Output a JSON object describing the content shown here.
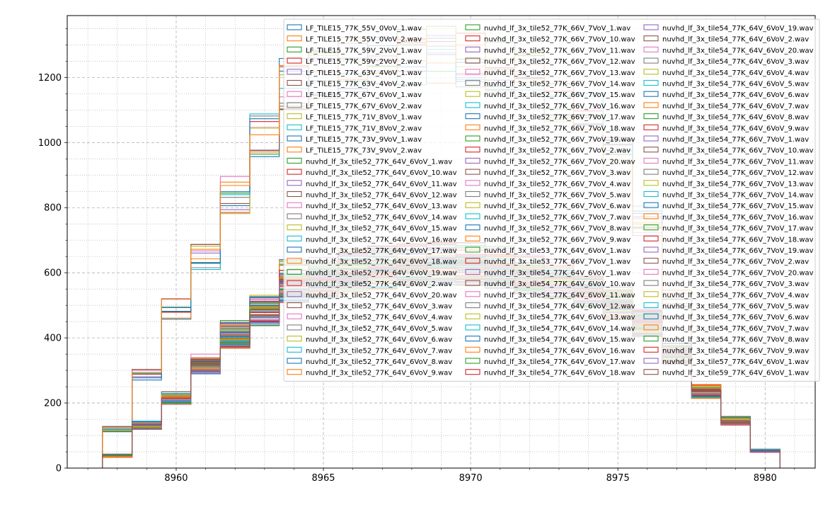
{
  "chart_data": {
    "type": "histogram-step",
    "title": "",
    "xlabel": "",
    "ylabel": "",
    "xlim": [
      8956.3,
      8981.7
    ],
    "ylim": [
      0,
      1390
    ],
    "xticks": [
      8960,
      8965,
      8970,
      8975,
      8980
    ],
    "yticks": [
      0,
      200,
      400,
      600,
      800,
      1000,
      1200
    ],
    "grid": {
      "major": "dashed",
      "minor": "dotted"
    },
    "legend_placement": "top-right",
    "legend_columns": 3,
    "bin_edges": [
      8957.5,
      8958.5,
      8959.5,
      8960.5,
      8961.5,
      8962.5,
      8963.5,
      8964.5,
      8965.5,
      8966.5,
      8967.5,
      8968.5,
      8969.5,
      8970.5,
      8971.5,
      8972.5,
      8973.5,
      8974.5,
      8975.5,
      8976.5,
      8977.5,
      8978.5,
      8979.5,
      8980.5
    ],
    "group_profiles": {
      "LF_TILE15": [
        120,
        290,
        490,
        650,
        840,
        1020,
        1180,
        1210,
        1240,
        1250,
        1260,
        1270,
        1250,
        1230,
        1200,
        1140,
        1080,
        950,
        760,
        520,
        230,
        140,
        55
      ],
      "tile52_64V": [
        40,
        130,
        215,
        315,
        400,
        480,
        560,
        580,
        600,
        610,
        615,
        620,
        620,
        615,
        600,
        580,
        555,
        510,
        450,
        350,
        240,
        150,
        55
      ],
      "tile52_66V": [
        35,
        135,
        220,
        330,
        425,
        500,
        600,
        610,
        630,
        640,
        645,
        650,
        650,
        640,
        620,
        600,
        570,
        520,
        460,
        360,
        240,
        150,
        55
      ],
      "tile54": [
        38,
        128,
        210,
        310,
        395,
        470,
        545,
        560,
        580,
        590,
        600,
        605,
        600,
        590,
        575,
        555,
        530,
        490,
        430,
        340,
        230,
        145,
        52
      ]
    },
    "legend_entries": [
      "LF_TILE15_77K_55V_0VoV_1.wav",
      "LF_TILE15_77K_55V_0VoV_2.wav",
      "LF_TILE15_77K_59V_2VoV_1.wav",
      "LF_TILE15_77K_59V_2VoV_2.wav",
      "LF_TILE15_77K_63V_4VoV_1.wav",
      "LF_TILE15_77K_63V_4VoV_2.wav",
      "LF_TILE15_77K_67V_6VoV_1.wav",
      "LF_TILE15_77K_67V_6VoV_2.wav",
      "LF_TILE15_77K_71V_8VoV_1.wav",
      "LF_TILE15_77K_71V_8VoV_2.wav",
      "LF_TILE15_77K_73V_9VoV_1.wav",
      "LF_TILE15_77K_73V_9VoV_2.wav",
      "nuvhd_lf_3x_tile52_77K_64V_6VoV_1.wav",
      "nuvhd_lf_3x_tile52_77K_64V_6VoV_10.wav",
      "nuvhd_lf_3x_tile52_77K_64V_6VoV_11.wav",
      "nuvhd_lf_3x_tile52_77K_64V_6VoV_12.wav",
      "nuvhd_lf_3x_tile52_77K_64V_6VoV_13.wav",
      "nuvhd_lf_3x_tile52_77K_64V_6VoV_14.wav",
      "nuvhd_lf_3x_tile52_77K_64V_6VoV_15.wav",
      "nuvhd_lf_3x_tile52_77K_64V_6VoV_16.wav",
      "nuvhd_lf_3x_tile52_77K_64V_6VoV_17.wav",
      "nuvhd_lf_3x_tile52_77K_64V_6VoV_18.wav",
      "nuvhd_lf_3x_tile52_77K_64V_6VoV_19.wav",
      "nuvhd_lf_3x_tile52_77K_64V_6VoV_2.wav",
      "nuvhd_lf_3x_tile52_77K_64V_6VoV_20.wav",
      "nuvhd_lf_3x_tile52_77K_64V_6VoV_3.wav",
      "nuvhd_lf_3x_tile52_77K_64V_6VoV_4.wav",
      "nuvhd_lf_3x_tile52_77K_64V_6VoV_5.wav",
      "nuvhd_lf_3x_tile52_77K_64V_6VoV_6.wav",
      "nuvhd_lf_3x_tile52_77K_64V_6VoV_7.wav",
      "nuvhd_lf_3x_tile52_77K_64V_6VoV_8.wav",
      "nuvhd_lf_3x_tile52_77K_64V_6VoV_9.wav",
      "nuvhd_lf_3x_tile52_77K_66V_7VoV_1.wav",
      "nuvhd_lf_3x_tile52_77K_66V_7VoV_10.wav",
      "nuvhd_lf_3x_tile52_77K_66V_7VoV_11.wav",
      "nuvhd_lf_3x_tile52_77K_66V_7VoV_12.wav",
      "nuvhd_lf_3x_tile52_77K_66V_7VoV_13.wav",
      "nuvhd_lf_3x_tile52_77K_66V_7VoV_14.wav",
      "nuvhd_lf_3x_tile52_77K_66V_7VoV_15.wav",
      "nuvhd_lf_3x_tile52_77K_66V_7VoV_16.wav",
      "nuvhd_lf_3x_tile52_77K_66V_7VoV_17.wav",
      "nuvhd_lf_3x_tile52_77K_66V_7VoV_18.wav",
      "nuvhd_lf_3x_tile52_77K_66V_7VoV_19.wav",
      "nuvhd_lf_3x_tile52_77K_66V_7VoV_2.wav",
      "nuvhd_lf_3x_tile52_77K_66V_7VoV_20.wav",
      "nuvhd_lf_3x_tile52_77K_66V_7VoV_3.wav",
      "nuvhd_lf_3x_tile52_77K_66V_7VoV_4.wav",
      "nuvhd_lf_3x_tile52_77K_66V_7VoV_5.wav",
      "nuvhd_lf_3x_tile52_77K_66V_7VoV_6.wav",
      "nuvhd_lf_3x_tile52_77K_66V_7VoV_7.wav",
      "nuvhd_lf_3x_tile52_77K_66V_7VoV_8.wav",
      "nuvhd_lf_3x_tile52_77K_66V_7VoV_9.wav",
      "nuvhd_lf_3x_tile53_77K_64V_6VoV_1.wav",
      "nuvhd_lf_3x_tile53_77K_66V_7VoV_1.wav",
      "nuvhd_lf_3x_tile54_77K_64V_6VoV_1.wav",
      "nuvhd_lf_3x_tile54_77K_64V_6VoV_10.wav",
      "nuvhd_lf_3x_tile54_77K_64V_6VoV_11.wav",
      "nuvhd_lf_3x_tile54_77K_64V_6VoV_12.wav",
      "nuvhd_lf_3x_tile54_77K_64V_6VoV_13.wav",
      "nuvhd_lf_3x_tile54_77K_64V_6VoV_14.wav",
      "nuvhd_lf_3x_tile54_77K_64V_6VoV_15.wav",
      "nuvhd_lf_3x_tile54_77K_64V_6VoV_16.wav",
      "nuvhd_lf_3x_tile54_77K_64V_6VoV_17.wav",
      "nuvhd_lf_3x_tile54_77K_64V_6VoV_18.wav",
      "nuvhd_lf_3x_tile54_77K_64V_6VoV_19.wav",
      "nuvhd_lf_3x_tile54_77K_64V_6VoV_2.wav",
      "nuvhd_lf_3x_tile54_77K_64V_6VoV_20.wav",
      "nuvhd_lf_3x_tile54_77K_64V_6VoV_3.wav",
      "nuvhd_lf_3x_tile54_77K_64V_6VoV_4.wav",
      "nuvhd_lf_3x_tile54_77K_64V_6VoV_5.wav",
      "nuvhd_lf_3x_tile54_77K_64V_6VoV_6.wav",
      "nuvhd_lf_3x_tile54_77K_64V_6VoV_7.wav",
      "nuvhd_lf_3x_tile54_77K_64V_6VoV_8.wav",
      "nuvhd_lf_3x_tile54_77K_64V_6VoV_9.wav",
      "nuvhd_lf_3x_tile54_77K_66V_7VoV_1.wav",
      "nuvhd_lf_3x_tile54_77K_66V_7VoV_10.wav",
      "nuvhd_lf_3x_tile54_77K_66V_7VoV_11.wav",
      "nuvhd_lf_3x_tile54_77K_66V_7VoV_12.wav",
      "nuvhd_lf_3x_tile54_77K_66V_7VoV_13.wav",
      "nuvhd_lf_3x_tile54_77K_66V_7VoV_14.wav",
      "nuvhd_lf_3x_tile54_77K_66V_7VoV_15.wav",
      "nuvhd_lf_3x_tile54_77K_66V_7VoV_16.wav",
      "nuvhd_lf_3x_tile54_77K_66V_7VoV_17.wav",
      "nuvhd_lf_3x_tile54_77K_66V_7VoV_18.wav",
      "nuvhd_lf_3x_tile54_77K_66V_7VoV_19.wav",
      "nuvhd_lf_3x_tile54_77K_66V_7VoV_2.wav",
      "nuvhd_lf_3x_tile54_77K_66V_7VoV_20.wav",
      "nuvhd_lf_3x_tile54_77K_66V_7VoV_3.wav",
      "nuvhd_lf_3x_tile54_77K_66V_7VoV_4.wav",
      "nuvhd_lf_3x_tile54_77K_66V_7VoV_5.wav",
      "nuvhd_lf_3x_tile54_77K_66V_7VoV_6.wav",
      "nuvhd_lf_3x_tile54_77K_66V_7VoV_7.wav",
      "nuvhd_lf_3x_tile54_77K_66V_7VoV_8.wav",
      "nuvhd_lf_3x_tile54_77K_66V_7VoV_9.wav",
      "nuvhd_lf_3x_tile57_77K_64V_6VoV_1.wav",
      "nuvhd_lf_3x_tile59_77K_64V_6VoV_1.wav"
    ],
    "color_cycle": [
      "#1f77b4",
      "#ff7f0e",
      "#2ca02c",
      "#d62728",
      "#9467bd",
      "#8c564b",
      "#e377c2",
      "#7f7f7f",
      "#bcbd22",
      "#17becf"
    ]
  }
}
